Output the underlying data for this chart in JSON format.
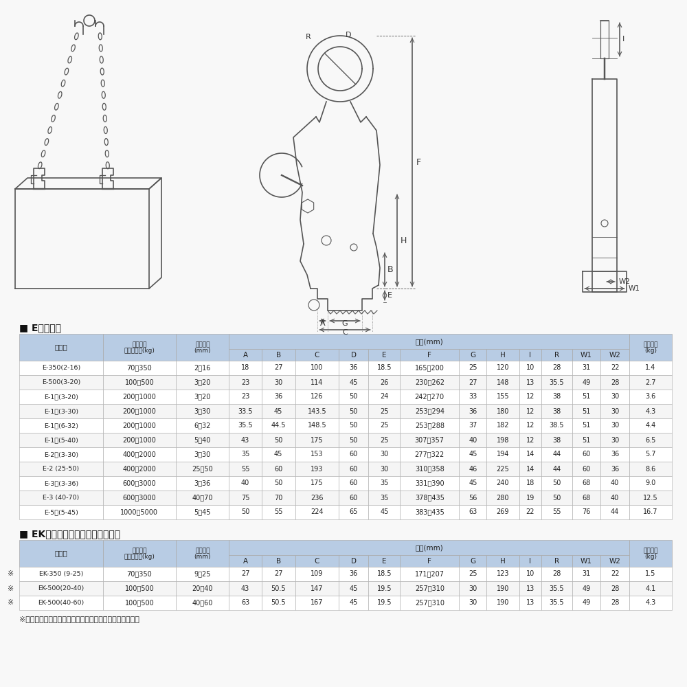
{
  "title_e": "■ E型寸法表",
  "title_ek": "■ EK型寸法表（ローレット仕様）",
  "footnote": "※印の納期については、その都度お問い合わせください。",
  "col_h1": [
    "型　式",
    "使用荷重\n最小～最大(kg)",
    "有効板厚\n(mm)",
    "寸法(mm)",
    "製品質量\n(kg)"
  ],
  "sub_cols": [
    "A",
    "B",
    "C",
    "D",
    "E",
    "F",
    "G",
    "H",
    "I",
    "R",
    "W1",
    "W2"
  ],
  "e_data": [
    [
      "E-350(2-16)",
      "70～350",
      "2～16",
      "18",
      "27",
      "100",
      "36",
      "18.5",
      "165～200",
      "25",
      "120",
      "10",
      "28",
      "31",
      "22",
      "1.4"
    ],
    [
      "E-500(3-20)",
      "100～500",
      "3～20",
      "23",
      "30",
      "114",
      "45",
      "26",
      "230～262",
      "27",
      "148",
      "13",
      "35.5",
      "49",
      "28",
      "2.7"
    ],
    [
      "E-1　(3-20)",
      "200～1000",
      "3～20",
      "23",
      "36",
      "126",
      "50",
      "24",
      "242～270",
      "33",
      "155",
      "12",
      "38",
      "51",
      "30",
      "3.6"
    ],
    [
      "E-1　(3-30)",
      "200～1000",
      "3～30",
      "33.5",
      "45",
      "143.5",
      "50",
      "25",
      "253～294",
      "36",
      "180",
      "12",
      "38",
      "51",
      "30",
      "4.3"
    ],
    [
      "E-1　(6-32)",
      "200～1000",
      "6～32",
      "35.5",
      "44.5",
      "148.5",
      "50",
      "25",
      "253～288",
      "37",
      "182",
      "12",
      "38.5",
      "51",
      "30",
      "4.4"
    ],
    [
      "E-1　(5-40)",
      "200～1000",
      "5～40",
      "43",
      "50",
      "175",
      "50",
      "25",
      "307～357",
      "40",
      "198",
      "12",
      "38",
      "51",
      "30",
      "6.5"
    ],
    [
      "E-2　(3-30)",
      "400～2000",
      "3～30",
      "35",
      "45",
      "153",
      "60",
      "30",
      "277～322",
      "45",
      "194",
      "14",
      "44",
      "60",
      "36",
      "5.7"
    ],
    [
      "E-2 (25-50)",
      "400～2000",
      "25～50",
      "55",
      "60",
      "193",
      "60",
      "30",
      "310～358",
      "46",
      "225",
      "14",
      "44",
      "60",
      "36",
      "8.6"
    ],
    [
      "E-3　(3-36)",
      "600～3000",
      "3～36",
      "40",
      "50",
      "175",
      "60",
      "35",
      "331～390",
      "45",
      "240",
      "18",
      "50",
      "68",
      "40",
      "9.0"
    ],
    [
      "E-3 (40-70)",
      "600～3000",
      "40～70",
      "75",
      "70",
      "236",
      "60",
      "35",
      "378～435",
      "56",
      "280",
      "19",
      "50",
      "68",
      "40",
      "12.5"
    ],
    [
      "E-5　(5-45)",
      "1000～5000",
      "5～45",
      "50",
      "55",
      "224",
      "65",
      "45",
      "383～435",
      "63",
      "269",
      "22",
      "55",
      "76",
      "44",
      "16.7"
    ]
  ],
  "ek_data": [
    [
      "EK-350 (9-25)",
      "70～350",
      "9～25",
      "27",
      "27",
      "109",
      "36",
      "18.5",
      "171～207",
      "25",
      "123",
      "10",
      "28",
      "31",
      "22",
      "1.5"
    ],
    [
      "EK-500(20-40)",
      "100～500",
      "20～40",
      "43",
      "50.5",
      "147",
      "45",
      "19.5",
      "257～310",
      "30",
      "190",
      "13",
      "35.5",
      "49",
      "28",
      "4.1"
    ],
    [
      "EK-500(40-60)",
      "100～500",
      "40～60",
      "63",
      "50.5",
      "167",
      "45",
      "19.5",
      "257～310",
      "30",
      "190",
      "13",
      "35.5",
      "49",
      "28",
      "4.3"
    ]
  ],
  "ek_asterisk": [
    true,
    true,
    true
  ],
  "header_bg": "#b8cce4",
  "row_bg_white": "#ffffff",
  "row_bg_gray": "#f5f5f5",
  "border_color": "#aaaaaa",
  "text_color": "#222222",
  "title_color": "#111111",
  "bg_color": "#f8f8f8",
  "lc": "#555555"
}
